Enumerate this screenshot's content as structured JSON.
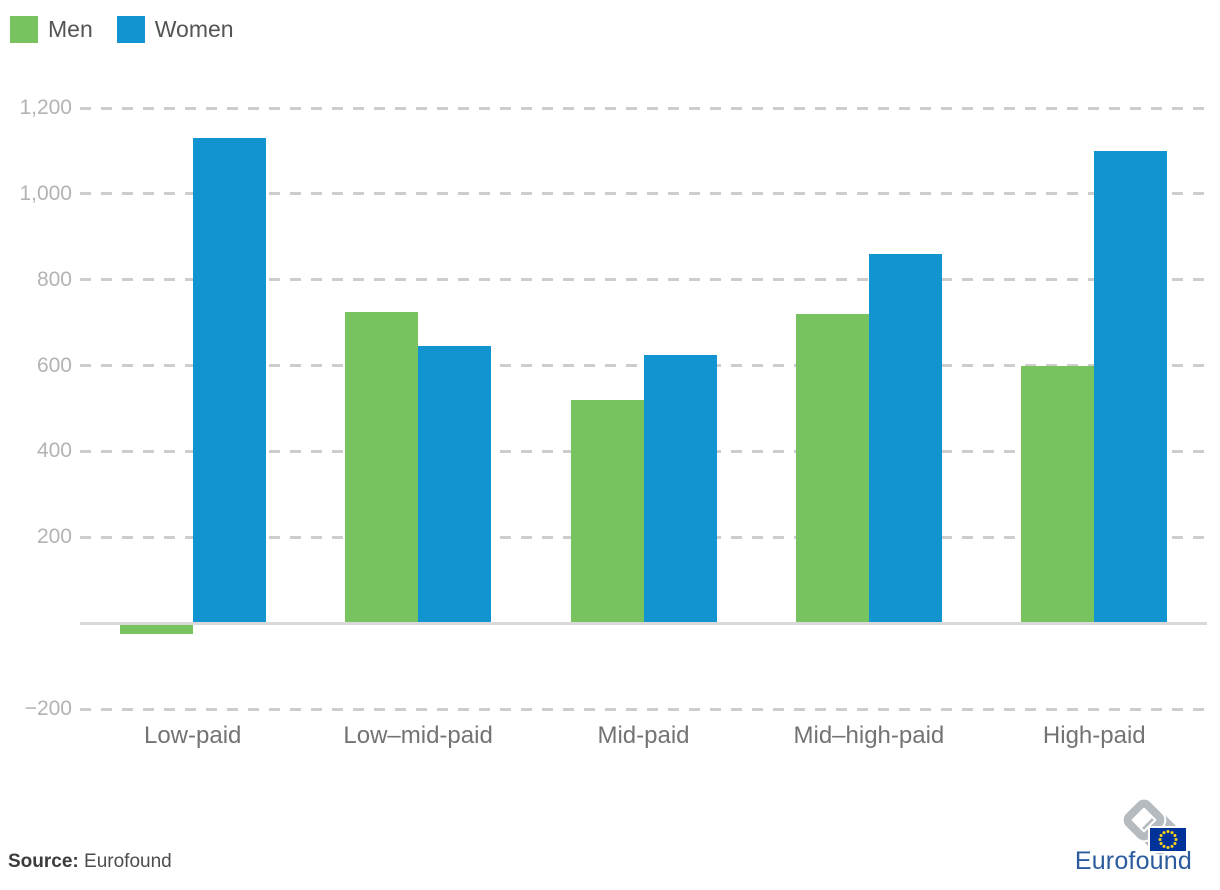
{
  "chart_data": {
    "type": "bar",
    "categories": [
      "Low-paid",
      "Low–mid-paid",
      "Mid-paid",
      "Mid–high-paid",
      "High-paid"
    ],
    "series": [
      {
        "name": "Men",
        "color": "#76c35f",
        "values": [
          -20,
          725,
          520,
          720,
          600
        ]
      },
      {
        "name": "Women",
        "color": "#1294d0",
        "values": [
          1130,
          645,
          625,
          860,
          1100
        ]
      }
    ],
    "ylim": [
      -200,
      1200
    ],
    "yticks": [
      1200,
      1000,
      800,
      600,
      400,
      200,
      -200
    ],
    "ytick_labels": [
      "1,200",
      "1,000",
      "800",
      "600",
      "400",
      "200",
      "−200"
    ],
    "xlabel": "",
    "ylabel": "",
    "grid": "dashed-horizontal",
    "legend_position": "top-left",
    "zero_line": "solid"
  },
  "source": {
    "label": "Source:",
    "value": "Eurofound"
  },
  "logo": {
    "text": "Eurofound",
    "mark_icon": "chain-links-icon",
    "flag_icon": "eu-flag-icon"
  },
  "colors": {
    "gridline": "#cdcdcd",
    "axis_line": "#d9d9d9",
    "ytick_text": "#b3b3b3",
    "category_text": "#737373",
    "legend_text": "#545454",
    "logo_blue": "#2b5c9d",
    "eu_flag_blue": "#003399",
    "eu_flag_star": "#ffd617"
  }
}
